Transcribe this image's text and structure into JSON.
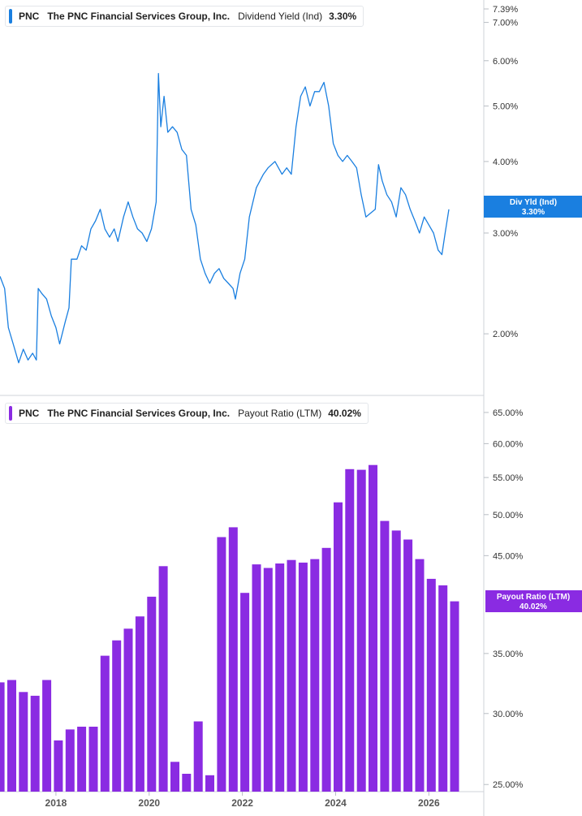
{
  "colors": {
    "yield": "#1a7fe0",
    "payout": "#8a2be2",
    "axis": "#cfd3d8"
  },
  "panels": {
    "yield": {
      "ticker": "PNC",
      "company": "The PNC Financial Services Group, Inc.",
      "metric": "Dividend Yield (Ind)",
      "value": "3.30%",
      "flag_label": "Div Yld (Ind)",
      "flag_value": "3.30%"
    },
    "payout": {
      "ticker": "PNC",
      "company": "The PNC Financial Services Group, Inc.",
      "metric": "Payout Ratio (LTM)",
      "value": "40.02%",
      "flag_label": "Payout Ratio (LTM)",
      "flag_value": "40.02%"
    }
  },
  "chart_data": [
    {
      "type": "line",
      "scale": "log",
      "ylim": [
        1.65,
        7.39
      ],
      "xlim": [
        2016.8,
        2026.9
      ],
      "y_ticks": [
        {
          "v": 7.39,
          "label": "7.39%"
        },
        {
          "v": 7.0,
          "label": "7.00%"
        },
        {
          "v": 6.0,
          "label": "6.00%"
        },
        {
          "v": 5.0,
          "label": "5.00%"
        },
        {
          "v": 4.0,
          "label": "4.00%"
        },
        {
          "v": 3.0,
          "label": "3.00%"
        },
        {
          "v": 2.0,
          "label": "2.00%"
        }
      ],
      "series": [
        {
          "values": [
            [
              2016.8,
              2.52
            ],
            [
              2016.9,
              2.4
            ],
            [
              2016.98,
              2.05
            ],
            [
              2017.1,
              1.9
            ],
            [
              2017.2,
              1.78
            ],
            [
              2017.3,
              1.88
            ],
            [
              2017.4,
              1.8
            ],
            [
              2017.5,
              1.85
            ],
            [
              2017.58,
              1.8
            ],
            [
              2017.62,
              2.4
            ],
            [
              2017.7,
              2.35
            ],
            [
              2017.8,
              2.3
            ],
            [
              2017.9,
              2.15
            ],
            [
              2018.0,
              2.05
            ],
            [
              2018.08,
              1.92
            ],
            [
              2018.2,
              2.1
            ],
            [
              2018.28,
              2.22
            ],
            [
              2018.33,
              2.7
            ],
            [
              2018.45,
              2.7
            ],
            [
              2018.55,
              2.85
            ],
            [
              2018.65,
              2.8
            ],
            [
              2018.75,
              3.05
            ],
            [
              2018.85,
              3.15
            ],
            [
              2018.95,
              3.3
            ],
            [
              2019.05,
              3.05
            ],
            [
              2019.15,
              2.95
            ],
            [
              2019.25,
              3.05
            ],
            [
              2019.33,
              2.9
            ],
            [
              2019.45,
              3.2
            ],
            [
              2019.55,
              3.4
            ],
            [
              2019.65,
              3.2
            ],
            [
              2019.75,
              3.05
            ],
            [
              2019.85,
              3.0
            ],
            [
              2019.95,
              2.9
            ],
            [
              2020.05,
              3.05
            ],
            [
              2020.15,
              3.4
            ],
            [
              2020.2,
              5.7
            ],
            [
              2020.25,
              4.6
            ],
            [
              2020.32,
              5.2
            ],
            [
              2020.4,
              4.5
            ],
            [
              2020.5,
              4.6
            ],
            [
              2020.6,
              4.5
            ],
            [
              2020.7,
              4.2
            ],
            [
              2020.8,
              4.1
            ],
            [
              2020.9,
              3.3
            ],
            [
              2021.0,
              3.1
            ],
            [
              2021.1,
              2.7
            ],
            [
              2021.2,
              2.55
            ],
            [
              2021.3,
              2.45
            ],
            [
              2021.4,
              2.55
            ],
            [
              2021.5,
              2.6
            ],
            [
              2021.6,
              2.5
            ],
            [
              2021.7,
              2.45
            ],
            [
              2021.8,
              2.4
            ],
            [
              2021.85,
              2.3
            ],
            [
              2021.95,
              2.55
            ],
            [
              2022.05,
              2.7
            ],
            [
              2022.15,
              3.2
            ],
            [
              2022.3,
              3.6
            ],
            [
              2022.45,
              3.8
            ],
            [
              2022.55,
              3.9
            ],
            [
              2022.7,
              4.0
            ],
            [
              2022.85,
              3.8
            ],
            [
              2022.95,
              3.9
            ],
            [
              2023.05,
              3.8
            ],
            [
              2023.15,
              4.6
            ],
            [
              2023.25,
              5.2
            ],
            [
              2023.35,
              5.4
            ],
            [
              2023.45,
              5.0
            ],
            [
              2023.55,
              5.3
            ],
            [
              2023.65,
              5.3
            ],
            [
              2023.75,
              5.5
            ],
            [
              2023.85,
              5.0
            ],
            [
              2023.95,
              4.3
            ],
            [
              2024.05,
              4.1
            ],
            [
              2024.15,
              4.0
            ],
            [
              2024.25,
              4.1
            ],
            [
              2024.35,
              4.0
            ],
            [
              2024.45,
              3.9
            ],
            [
              2024.55,
              3.5
            ],
            [
              2024.65,
              3.2
            ],
            [
              2024.75,
              3.25
            ],
            [
              2024.85,
              3.3
            ],
            [
              2024.92,
              3.95
            ],
            [
              2025.0,
              3.7
            ],
            [
              2025.1,
              3.5
            ],
            [
              2025.2,
              3.4
            ],
            [
              2025.3,
              3.2
            ],
            [
              2025.4,
              3.6
            ],
            [
              2025.5,
              3.5
            ],
            [
              2025.6,
              3.3
            ],
            [
              2025.7,
              3.15
            ],
            [
              2025.8,
              3.0
            ],
            [
              2025.9,
              3.2
            ],
            [
              2026.0,
              3.1
            ],
            [
              2026.1,
              3.0
            ],
            [
              2026.2,
              2.8
            ],
            [
              2026.28,
              2.75
            ],
            [
              2026.35,
              3.0
            ],
            [
              2026.43,
              3.3
            ]
          ]
        }
      ]
    },
    {
      "type": "bar",
      "scale": "log",
      "ylim": [
        24.7,
        65.0
      ],
      "xlim": [
        2016.8,
        2026.9
      ],
      "y_ticks": [
        {
          "v": 65,
          "label": "65.00%"
        },
        {
          "v": 60,
          "label": "60.00%"
        },
        {
          "v": 55,
          "label": "55.00%"
        },
        {
          "v": 50,
          "label": "50.00%"
        },
        {
          "v": 45,
          "label": "45.00%"
        },
        {
          "v": 35,
          "label": "35.00%"
        },
        {
          "v": 30,
          "label": "30.00%"
        },
        {
          "v": 25,
          "label": "25.00%"
        }
      ],
      "x_ticks": [
        {
          "v": 2018,
          "label": "2018"
        },
        {
          "v": 2020,
          "label": "2020"
        },
        {
          "v": 2022,
          "label": "2022"
        },
        {
          "v": 2024,
          "label": "2024"
        },
        {
          "v": 2026,
          "label": "2026"
        }
      ],
      "series": [
        {
          "x": [
            2016.75,
            2017.0,
            2017.25,
            2017.5,
            2017.75,
            2018.0,
            2018.25,
            2018.5,
            2018.75,
            2019.0,
            2019.25,
            2019.5,
            2019.75,
            2020.0,
            2020.25,
            2020.5,
            2020.75,
            2021.0,
            2021.25,
            2021.5,
            2021.75,
            2022.0,
            2022.25,
            2022.5,
            2022.75,
            2023.0,
            2023.25,
            2023.5,
            2023.75,
            2024.0,
            2024.25,
            2024.5,
            2024.75,
            2025.0,
            2025.25,
            2025.5,
            2025.75,
            2026.0,
            2026.25,
            2026.5
          ],
          "values": [
            32.5,
            32.7,
            31.7,
            31.4,
            32.7,
            28.0,
            28.8,
            29.0,
            29.0,
            34.8,
            36.2,
            37.3,
            38.5,
            40.5,
            43.8,
            26.5,
            25.7,
            29.4,
            25.6,
            47.2,
            48.4,
            40.9,
            44.0,
            43.6,
            44.1,
            44.5,
            44.2,
            44.6,
            45.9,
            51.6,
            56.2,
            56.1,
            56.8,
            49.2,
            48.0,
            46.9,
            44.6,
            42.4,
            41.7,
            40.02
          ]
        }
      ]
    }
  ]
}
